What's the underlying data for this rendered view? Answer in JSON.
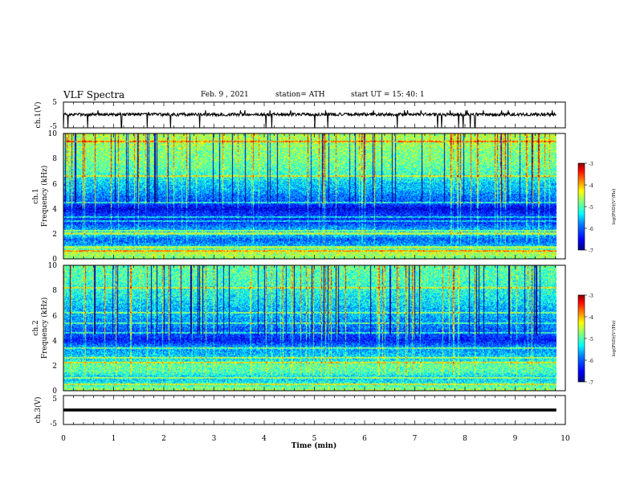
{
  "header": {
    "title": "VLF Spectra",
    "date": "Feb. 9 , 2021",
    "station": "station= ATH",
    "start": "start UT = 15: 40: 1"
  },
  "colors": {
    "colormap": [
      "#000080",
      "#0000ff",
      "#0080ff",
      "#00ffff",
      "#80ff80",
      "#ffff00",
      "#ff8000",
      "#ff0000",
      "#800000"
    ],
    "trace": "#000000"
  },
  "chart_data": [
    {
      "type": "line",
      "panel": "ch1-voltage",
      "ylabel": "ch.1(V)",
      "ylim": [
        -5,
        5
      ],
      "y_ticks": [
        -5,
        5
      ],
      "xlim": [
        0,
        10
      ],
      "baseline": 0.2,
      "noise_amplitude": 0.6,
      "spike_minimum": -5
    },
    {
      "type": "heatmap",
      "panel": "ch1-spectrogram",
      "ylabel_top": "ch.1",
      "ylabel": "Frequency (kHz)",
      "ylim": [
        0,
        10
      ],
      "y_ticks": [
        0,
        2,
        4,
        6,
        8,
        10
      ],
      "xlim": [
        0,
        9.8
      ],
      "colorbar": {
        "label": "log(PSD)(V²/Hz)",
        "ticks": [
          -3,
          -4,
          -5,
          -6,
          -7
        ],
        "range": [
          -7,
          -3
        ]
      },
      "frequency_profile_kHz": [
        0.0,
        0.5,
        1.0,
        1.5,
        2.0,
        2.5,
        3.0,
        3.5,
        4.0,
        4.5,
        5.0,
        5.5,
        6.0,
        6.5,
        7.0,
        7.5,
        8.0,
        8.5,
        9.0,
        9.5,
        10.0
      ],
      "frequency_profile_logpsd": [
        -4.8,
        -4.5,
        -5.6,
        -6.0,
        -5.4,
        -5.8,
        -6.3,
        -6.2,
        -6.6,
        -6.0,
        -5.9,
        -5.6,
        -5.5,
        -5.2,
        -5.0,
        -4.9,
        -4.8,
        -4.8,
        -4.7,
        -4.6,
        -4.6
      ],
      "line_frequencies_kHz": [
        0.6,
        0.9,
        2.0,
        2.2,
        3.0,
        3.3,
        4.5,
        6.6,
        9.4
      ]
    },
    {
      "type": "heatmap",
      "panel": "ch2-spectrogram",
      "ylabel_top": "ch.2",
      "ylabel": "Frequency (kHz)",
      "ylim": [
        0,
        10
      ],
      "y_ticks": [
        0,
        2,
        4,
        6,
        8,
        10
      ],
      "xlim": [
        0,
        9.8
      ],
      "colorbar": {
        "label": "log(PSD)(V²/Hz)",
        "ticks": [
          -3,
          -4,
          -5,
          -6,
          -7
        ],
        "range": [
          -7,
          -3
        ]
      },
      "frequency_profile_kHz": [
        0.0,
        0.5,
        1.0,
        1.5,
        2.0,
        2.5,
        3.0,
        3.5,
        4.0,
        4.5,
        5.0,
        5.5,
        6.0,
        6.5,
        7.0,
        7.5,
        8.0,
        8.5,
        9.0,
        9.5,
        10.0
      ],
      "frequency_profile_logpsd": [
        -4.6,
        -5.2,
        -5.5,
        -5.0,
        -4.9,
        -5.4,
        -5.6,
        -5.8,
        -6.4,
        -6.1,
        -5.9,
        -5.8,
        -5.6,
        -5.6,
        -5.4,
        -5.3,
        -5.2,
        -5.1,
        -5.0,
        -5.0,
        -4.9
      ],
      "line_frequencies_kHz": [
        0.5,
        1.0,
        2.2,
        2.6,
        3.4,
        4.6,
        5.4,
        6.2,
        8.2
      ]
    },
    {
      "type": "line",
      "panel": "ch3-voltage",
      "ylabel": "ch.3(V)",
      "ylim": [
        -5,
        5
      ],
      "y_ticks": [
        -5,
        5
      ],
      "xlim": [
        0,
        9.8
      ],
      "baseline": 0.0,
      "trace_thickness_V": 1.0,
      "xlabel": "Time (min)",
      "x_ticks": [
        0,
        1,
        2,
        3,
        4,
        5,
        6,
        7,
        8,
        9,
        10
      ]
    }
  ]
}
